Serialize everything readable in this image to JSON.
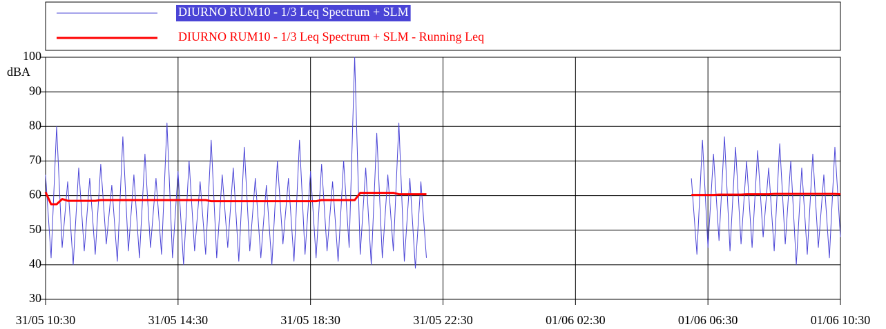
{
  "chart_data": {
    "type": "line",
    "y_label": "dBA",
    "x": [
      "31/05 10:30",
      "31/05 10:40",
      "31/05 10:50",
      "31/05 11:00",
      "31/05 11:10",
      "31/05 11:20",
      "31/05 11:30",
      "31/05 11:40",
      "31/05 11:50",
      "31/05 12:00",
      "31/05 12:10",
      "31/05 12:20",
      "31/05 12:30",
      "31/05 12:40",
      "31/05 12:50",
      "31/05 13:00",
      "31/05 13:10",
      "31/05 13:20",
      "31/05 13:30",
      "31/05 13:40",
      "31/05 13:50",
      "31/05 14:00",
      "31/05 14:10",
      "31/05 14:20",
      "31/05 14:30",
      "31/05 14:40",
      "31/05 14:50",
      "31/05 15:00",
      "31/05 15:10",
      "31/05 15:20",
      "31/05 15:30",
      "31/05 15:40",
      "31/05 15:50",
      "31/05 16:00",
      "31/05 16:10",
      "31/05 16:20",
      "31/05 16:30",
      "31/05 16:40",
      "31/05 16:50",
      "31/05 17:00",
      "31/05 17:10",
      "31/05 17:20",
      "31/05 17:30",
      "31/05 17:40",
      "31/05 17:50",
      "31/05 18:00",
      "31/05 18:10",
      "31/05 18:20",
      "31/05 18:30",
      "31/05 18:40",
      "31/05 18:50",
      "31/05 19:00",
      "31/05 19:10",
      "31/05 19:20",
      "31/05 19:30",
      "31/05 19:40",
      "31/05 19:50",
      "31/05 20:00",
      "31/05 20:10",
      "31/05 20:20",
      "31/05 20:30",
      "31/05 20:40",
      "31/05 20:50",
      "31/05 21:00",
      "31/05 21:10",
      "31/05 21:20",
      "31/05 21:30",
      "31/05 21:40",
      "31/05 21:50",
      "31/05 22:00",
      "01/06 02:00",
      "01/06 06:00",
      "01/06 06:10",
      "01/06 06:20",
      "01/06 06:30",
      "01/06 06:40",
      "01/06 06:50",
      "01/06 07:00",
      "01/06 07:10",
      "01/06 07:20",
      "01/06 07:30",
      "01/06 07:40",
      "01/06 07:50",
      "01/06 08:00",
      "01/06 08:10",
      "01/06 08:20",
      "01/06 08:30",
      "01/06 08:40",
      "01/06 08:50",
      "01/06 09:00",
      "01/06 09:10",
      "01/06 09:20",
      "01/06 09:30",
      "01/06 09:40",
      "01/06 09:50",
      "01/06 10:00",
      "01/06 10:10",
      "01/06 10:20",
      "01/06 10:30"
    ],
    "series": [
      {
        "name": "DIURNO RUM10 - 1/3 Leq Spectrum + SLM",
        "color": "#4a44d6",
        "values": [
          66,
          42,
          80,
          45,
          64,
          40,
          68,
          44,
          65,
          43,
          69,
          46,
          63,
          41,
          77,
          44,
          66,
          42,
          72,
          45,
          65,
          43,
          81,
          42,
          67,
          40,
          70,
          44,
          64,
          43,
          76,
          42,
          66,
          45,
          68,
          41,
          74,
          44,
          65,
          42,
          63,
          40,
          70,
          46,
          65,
          41,
          76,
          43,
          67,
          42,
          69,
          44,
          64,
          41,
          70,
          45,
          100,
          43,
          68,
          40,
          78,
          42,
          66,
          44,
          81,
          41,
          65,
          39,
          64,
          42,
          null,
          65,
          43,
          76,
          45,
          72,
          47,
          77,
          44,
          74,
          46,
          70,
          45,
          73,
          48,
          68,
          44,
          75,
          46,
          70,
          40,
          68,
          43,
          72,
          45,
          66,
          42,
          74,
          48
        ]
      },
      {
        "name": "DIURNO RUM10 - 1/3 Leq Spectrum + SLM - Running Leq",
        "color": "#ff0000",
        "values": [
          61,
          57.5,
          57.5,
          59,
          58.5,
          58.5,
          58.5,
          58.5,
          58.5,
          58.5,
          58.7,
          58.7,
          58.7,
          58.7,
          58.7,
          58.7,
          58.7,
          58.7,
          58.7,
          58.7,
          58.7,
          58.7,
          58.7,
          58.7,
          58.7,
          58.7,
          58.7,
          58.7,
          58.7,
          58.7,
          58.4,
          58.4,
          58.4,
          58.4,
          58.4,
          58.4,
          58.4,
          58.4,
          58.4,
          58.4,
          58.4,
          58.4,
          58.4,
          58.4,
          58.4,
          58.4,
          58.4,
          58.4,
          58.4,
          58.4,
          58.7,
          58.7,
          58.7,
          58.7,
          58.7,
          58.7,
          58.7,
          60.8,
          60.8,
          60.8,
          60.8,
          60.8,
          60.8,
          60.8,
          60.4,
          60.4,
          60.4,
          60.4,
          60.4,
          60.4,
          null,
          60.2,
          60.2,
          60.2,
          60.2,
          60.2,
          60.3,
          60.3,
          60.3,
          60.3,
          60.3,
          60.4,
          60.4,
          60.4,
          60.4,
          60.4,
          60.5,
          60.5,
          60.5,
          60.5,
          60.5,
          60.5,
          60.5,
          60.5,
          60.5,
          60.5,
          60.5,
          60.5,
          60.4
        ]
      }
    ],
    "xlim": [
      "31/05 10:30",
      "01/06 10:30"
    ],
    "xticks": [
      "31/05 10:30",
      "31/05 14:30",
      "31/05 18:30",
      "31/05 22:30",
      "01/06 02:30",
      "01/06 06:30",
      "01/06 10:30"
    ],
    "ylim": [
      30,
      100
    ],
    "yticks": [
      30,
      40,
      50,
      60,
      70,
      80,
      90,
      100
    ],
    "grid": true
  }
}
